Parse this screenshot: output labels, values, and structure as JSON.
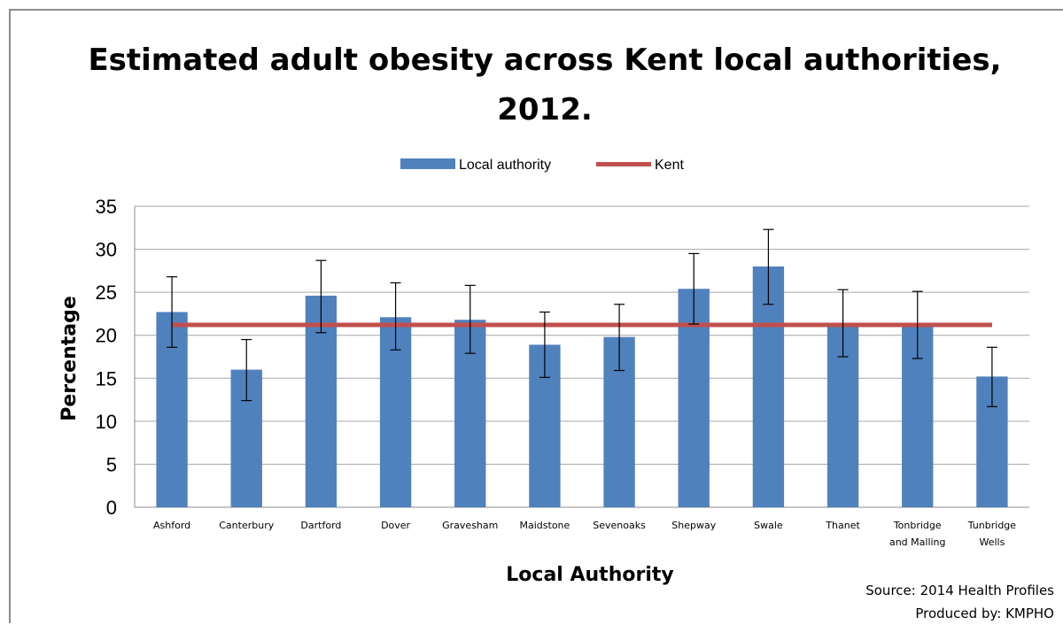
{
  "chart_data": {
    "type": "bar",
    "title_line1": "Estimated adult obesity across Kent local authorities,",
    "title_line2": "2012.",
    "xlabel": "Local Authority",
    "ylabel": "Percentage",
    "ylim": [
      0,
      35
    ],
    "yticks": [
      "0",
      "5",
      "10",
      "15",
      "20",
      "25",
      "30",
      "35"
    ],
    "grid": true,
    "legend_position": "top",
    "categories": [
      [
        "Ashford"
      ],
      [
        "Canterbury"
      ],
      [
        "Dartford"
      ],
      [
        "Dover"
      ],
      [
        "Gravesham"
      ],
      [
        "Maidstone"
      ],
      [
        "Sevenoaks"
      ],
      [
        "Shepway"
      ],
      [
        "Swale"
      ],
      [
        "Thanet"
      ],
      [
        "Tonbridge",
        "and Malling"
      ],
      [
        "Tunbridge",
        "Wells"
      ]
    ],
    "series": [
      {
        "name": "Local authority",
        "type": "bar",
        "color": "#4f81bd",
        "values": [
          22.7,
          16.0,
          24.6,
          22.1,
          21.8,
          18.9,
          19.8,
          25.4,
          28.0,
          21.4,
          21.2,
          15.2
        ],
        "error_low": [
          18.6,
          12.4,
          20.3,
          18.3,
          17.9,
          15.1,
          15.9,
          21.3,
          23.6,
          17.5,
          17.3,
          11.7
        ],
        "error_high": [
          26.8,
          19.5,
          28.7,
          26.1,
          25.8,
          22.7,
          23.6,
          29.5,
          32.3,
          25.3,
          25.1,
          18.6
        ]
      },
      {
        "name": "Kent",
        "type": "line",
        "color": "#c0504d",
        "value": 21.2
      }
    ],
    "source_line1": "Source: 2014  Health Profiles",
    "source_line2": "Produced by: KMPHO"
  }
}
